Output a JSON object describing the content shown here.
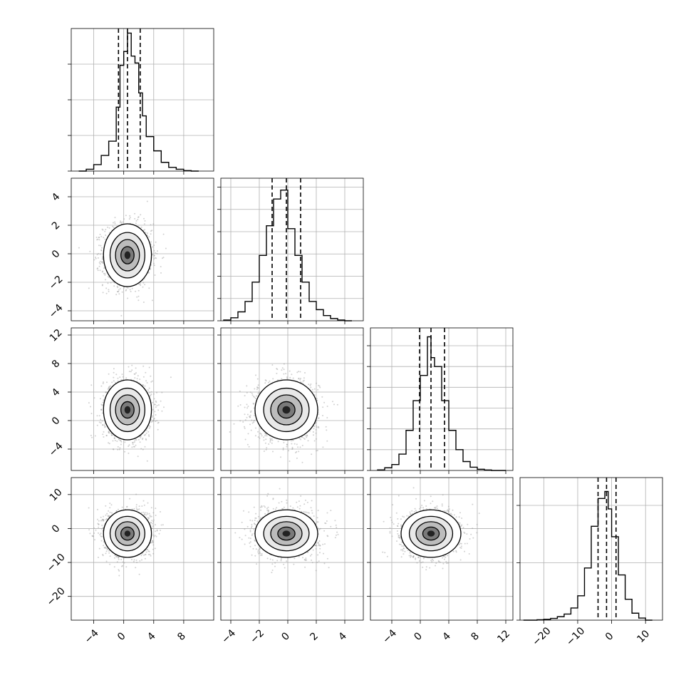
{
  "chart_data": {
    "type": "corner",
    "parameters": 4,
    "histograms": [
      {
        "param": 0,
        "bin_edges": [
          -6,
          -5,
          -4,
          -3,
          -2,
          -1,
          -0.5,
          0,
          0.5,
          1,
          1.5,
          2,
          2.5,
          3,
          4,
          5,
          6,
          7,
          8,
          9,
          10
        ],
        "counts": [
          0,
          8,
          28,
          68,
          130,
          278,
          460,
          520,
          600,
          500,
          470,
          340,
          240,
          150,
          88,
          38,
          16,
          8,
          2,
          0
        ],
        "quantiles": [
          -0.7,
          0.5,
          2.2
        ],
        "ylim": [
          0,
          620
        ],
        "xlim": [
          -7,
          12
        ],
        "x_ticks": [
          -4,
          0,
          4,
          8
        ],
        "y_ticks": [
          0,
          155,
          310,
          465
        ]
      },
      {
        "param": 1,
        "bin_edges": [
          -4.5,
          -4,
          -3.5,
          -3,
          -2.5,
          -2,
          -1.5,
          -1,
          -0.5,
          0,
          0.5,
          1,
          1.5,
          2,
          2.5,
          3,
          3.5,
          4,
          4.5
        ],
        "counts": [
          5,
          20,
          60,
          130,
          260,
          440,
          640,
          820,
          880,
          620,
          440,
          260,
          130,
          75,
          35,
          15,
          5,
          0
        ],
        "quantiles": [
          -1.1,
          -0.1,
          0.9
        ],
        "ylim": [
          0,
          960
        ],
        "xlim": [
          -4.7,
          5.3
        ],
        "x_ticks": [
          -4,
          -2,
          0,
          2,
          4
        ],
        "y_ticks": [
          0,
          150,
          300,
          450,
          600,
          750,
          900
        ]
      },
      {
        "param": 2,
        "bin_edges": [
          -6,
          -5,
          -4,
          -3,
          -2,
          -1,
          0,
          1,
          1.5,
          2,
          3,
          4,
          5,
          6,
          7,
          8,
          9,
          10,
          11,
          12
        ],
        "counts": [
          4,
          18,
          40,
          110,
          270,
          470,
          640,
          900,
          760,
          700,
          470,
          270,
          140,
          60,
          22,
          8,
          3,
          0,
          0
        ],
        "quantiles": [
          -0.1,
          1.5,
          3.4
        ],
        "ylim": [
          0,
          960
        ],
        "xlim": [
          -7,
          13
        ],
        "x_ticks": [
          -4,
          0,
          4,
          8,
          12
        ],
        "y_ticks": [
          0,
          140,
          280,
          420,
          560,
          700,
          840
        ]
      },
      {
        "param": 3,
        "bin_edges": [
          -26,
          -24,
          -22,
          -20,
          -18,
          -16,
          -14,
          -12,
          -10,
          -8,
          -6,
          -4,
          -2,
          -1,
          0,
          2,
          4,
          6,
          8,
          10,
          12
        ],
        "counts": [
          0,
          0,
          2,
          5,
          10,
          20,
          35,
          70,
          140,
          300,
          540,
          700,
          740,
          640,
          480,
          260,
          120,
          40,
          12,
          0
        ],
        "quantiles": [
          -4.0,
          -1.5,
          1.3
        ],
        "ylim": [
          0,
          820
        ],
        "xlim": [
          -27,
          15
        ],
        "x_ticks": [
          -20,
          -10,
          0,
          10
        ],
        "y_ticks": [
          0,
          330,
          660
        ]
      }
    ],
    "scatter_panels": [
      {
        "x_param": 0,
        "y_param": 1,
        "center": [
          0.5,
          -0.1
        ],
        "xlim": [
          -7,
          12
        ],
        "ylim": [
          -4.7,
          5.3
        ],
        "y_ticks": [
          -4,
          -2,
          0,
          2,
          4
        ]
      },
      {
        "x_param": 0,
        "y_param": 2,
        "center": [
          0.5,
          1.5
        ],
        "xlim": [
          -7,
          12
        ],
        "ylim": [
          -7,
          13
        ],
        "y_ticks": [
          -4,
          0,
          4,
          8,
          12
        ]
      },
      {
        "x_param": 1,
        "y_param": 2,
        "center": [
          -0.1,
          1.5
        ],
        "xlim": [
          -4.7,
          5.3
        ],
        "ylim": [
          -7,
          13
        ]
      },
      {
        "x_param": 0,
        "y_param": 3,
        "center": [
          0.5,
          -1.5
        ],
        "xlim": [
          -7,
          12
        ],
        "ylim": [
          -27,
          15
        ],
        "y_ticks": [
          -20,
          -10,
          0,
          10
        ]
      },
      {
        "x_param": 1,
        "y_param": 3,
        "center": [
          -0.1,
          -1.5
        ],
        "xlim": [
          -4.7,
          5.3
        ],
        "ylim": [
          -27,
          15
        ]
      },
      {
        "x_param": 2,
        "y_param": 3,
        "center": [
          1.5,
          -1.5
        ],
        "xlim": [
          -7,
          13
        ],
        "ylim": [
          -27,
          15
        ]
      }
    ],
    "bottom_x_tick_labels": [
      [
        "-4",
        "0",
        "4",
        "8"
      ],
      [
        "-4",
        "-2",
        "0",
        "2",
        "4"
      ],
      [
        "-4",
        "0",
        "4",
        "8",
        "12"
      ],
      [
        "-20",
        "-10",
        "0",
        "10"
      ]
    ],
    "left_y_tick_labels": [
      [],
      [
        "-4",
        "-2",
        "0",
        "2",
        "4"
      ],
      [
        "-4",
        "0",
        "4",
        "8",
        "12"
      ],
      [
        "-20",
        "-10",
        "0",
        "10"
      ]
    ],
    "grid": true,
    "colors": {
      "line": "#000000",
      "grid": "#b0b0b0",
      "points": "#9a9a9a"
    }
  }
}
